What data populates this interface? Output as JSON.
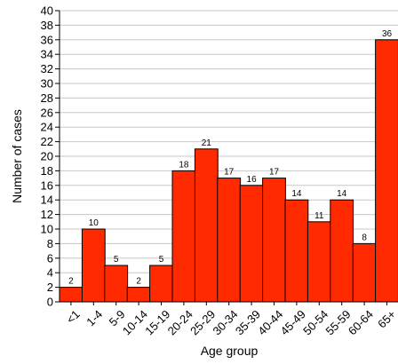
{
  "chart_data": {
    "type": "bar",
    "xlabel": "Age group",
    "ylabel": "Number of cases",
    "categories": [
      "<1",
      "1-4",
      "5-9",
      "10-14",
      "15-19",
      "20-24",
      "25-29",
      "30-34",
      "35-39",
      "40-44",
      "45-49",
      "50-54",
      "55-59",
      "60-64",
      "65+"
    ],
    "values": [
      2,
      10,
      5,
      2,
      5,
      18,
      21,
      17,
      16,
      17,
      14,
      11,
      14,
      8,
      36
    ],
    "ylim": [
      0,
      40
    ],
    "ytick_step": 2,
    "grid": true,
    "legend": "none",
    "colors": {
      "bar": "#ff2a00",
      "bar_edge": "#000000",
      "grid": "#c8c8c8",
      "axis": "#000000"
    }
  }
}
